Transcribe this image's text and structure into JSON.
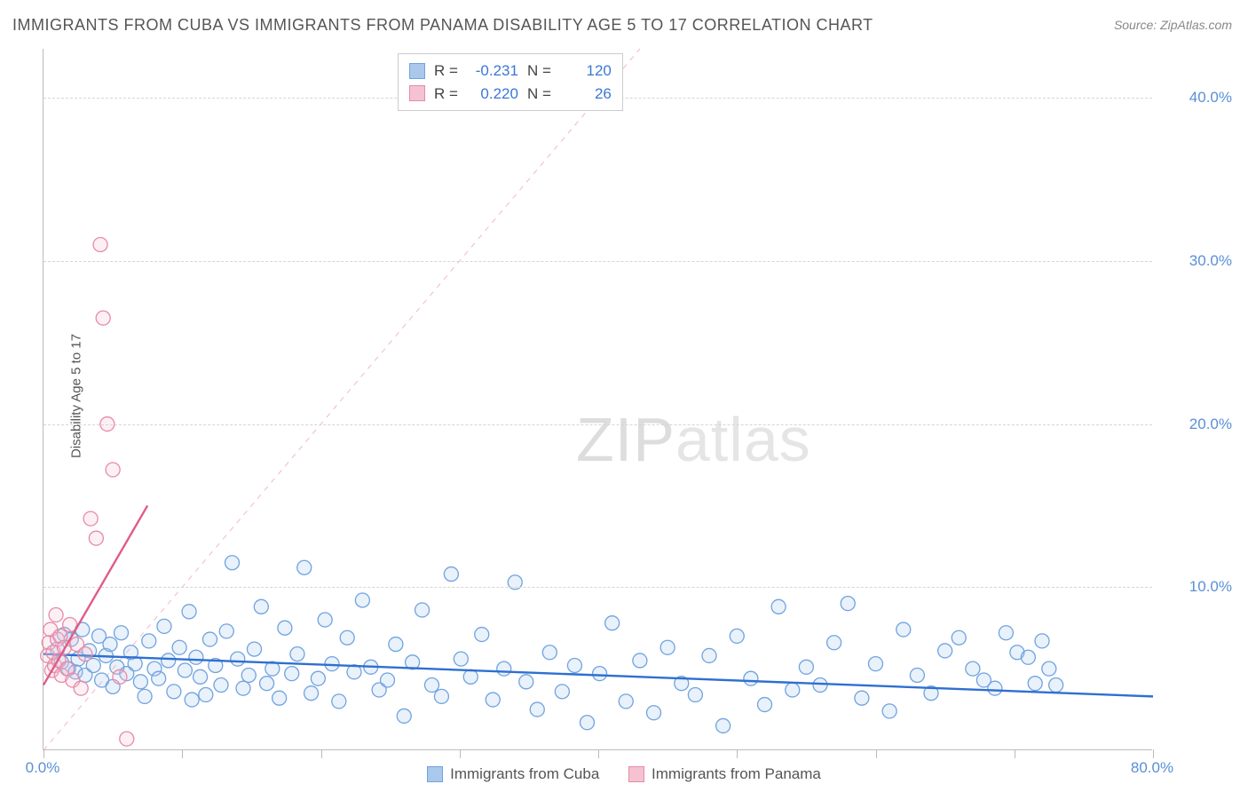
{
  "title": "IMMIGRANTS FROM CUBA VS IMMIGRANTS FROM PANAMA DISABILITY AGE 5 TO 17 CORRELATION CHART",
  "source_label": "Source: ZipAtlas.com",
  "watermark": {
    "bold": "ZIP",
    "light": "atlas"
  },
  "y_axis_label": "Disability Age 5 to 17",
  "chart": {
    "type": "scatter",
    "background_color": "#ffffff",
    "grid_color": "#d5d5d5",
    "axis_color": "#bbbbbb",
    "xlim": [
      0,
      80
    ],
    "ylim": [
      0,
      43
    ],
    "x_ticks": [
      0,
      10,
      20,
      30,
      40,
      50,
      60,
      70,
      80
    ],
    "x_tick_labels_shown": {
      "0": "0.0%",
      "80": "80.0%"
    },
    "y_ticks": [
      10,
      20,
      30,
      40
    ],
    "y_tick_labels": {
      "10": "10.0%",
      "20": "20.0%",
      "30": "30.0%",
      "40": "40.0%"
    },
    "marker_radius": 8,
    "marker_stroke_width": 1.3,
    "marker_fill_opacity": 0.25,
    "trend_line_width": 2.4,
    "diag_line": {
      "x1": 0,
      "y1": 0,
      "x2": 43,
      "y2": 43,
      "dash": "6,6",
      "color": "#f2b8c6",
      "width": 1
    }
  },
  "series": [
    {
      "name": "Immigrants from Cuba",
      "legend_label": "Immigrants from Cuba",
      "color_stroke": "#6fa3e0",
      "color_fill": "#a9c8ec",
      "trend_color": "#2e6fd1",
      "R": "-0.231",
      "N": "120",
      "trend": {
        "x1": 0,
        "y1": 5.9,
        "x2": 80,
        "y2": 3.3
      },
      "points": [
        [
          1,
          6.2
        ],
        [
          1.3,
          5.4
        ],
        [
          1.5,
          7.1
        ],
        [
          1.8,
          5.0
        ],
        [
          2.0,
          6.8
        ],
        [
          2.3,
          4.8
        ],
        [
          2.5,
          5.6
        ],
        [
          2.8,
          7.4
        ],
        [
          3.0,
          4.6
        ],
        [
          3.3,
          6.1
        ],
        [
          3.6,
          5.2
        ],
        [
          4.0,
          7.0
        ],
        [
          4.2,
          4.3
        ],
        [
          4.5,
          5.8
        ],
        [
          4.8,
          6.5
        ],
        [
          5.0,
          3.9
        ],
        [
          5.3,
          5.1
        ],
        [
          5.6,
          7.2
        ],
        [
          6.0,
          4.7
        ],
        [
          6.3,
          6.0
        ],
        [
          6.6,
          5.3
        ],
        [
          7.0,
          4.2
        ],
        [
          7.3,
          3.3
        ],
        [
          7.6,
          6.7
        ],
        [
          8.0,
          5.0
        ],
        [
          8.3,
          4.4
        ],
        [
          8.7,
          7.6
        ],
        [
          9.0,
          5.5
        ],
        [
          9.4,
          3.6
        ],
        [
          9.8,
          6.3
        ],
        [
          10.2,
          4.9
        ],
        [
          10.5,
          8.5
        ],
        [
          10.7,
          3.1
        ],
        [
          11.0,
          5.7
        ],
        [
          11.3,
          4.5
        ],
        [
          11.7,
          3.4
        ],
        [
          12.0,
          6.8
        ],
        [
          12.4,
          5.2
        ],
        [
          12.8,
          4.0
        ],
        [
          13.2,
          7.3
        ],
        [
          13.6,
          11.5
        ],
        [
          14.0,
          5.6
        ],
        [
          14.4,
          3.8
        ],
        [
          14.8,
          4.6
        ],
        [
          15.2,
          6.2
        ],
        [
          15.7,
          8.8
        ],
        [
          16.1,
          4.1
        ],
        [
          16.5,
          5.0
        ],
        [
          17.0,
          3.2
        ],
        [
          17.4,
          7.5
        ],
        [
          17.9,
          4.7
        ],
        [
          18.3,
          5.9
        ],
        [
          18.8,
          11.2
        ],
        [
          19.3,
          3.5
        ],
        [
          19.8,
          4.4
        ],
        [
          20.3,
          8.0
        ],
        [
          20.8,
          5.3
        ],
        [
          21.3,
          3.0
        ],
        [
          21.9,
          6.9
        ],
        [
          22.4,
          4.8
        ],
        [
          23.0,
          9.2
        ],
        [
          23.6,
          5.1
        ],
        [
          24.2,
          3.7
        ],
        [
          24.8,
          4.3
        ],
        [
          25.4,
          6.5
        ],
        [
          26.0,
          2.1
        ],
        [
          26.6,
          5.4
        ],
        [
          27.3,
          8.6
        ],
        [
          28.0,
          4.0
        ],
        [
          28.7,
          3.3
        ],
        [
          29.4,
          10.8
        ],
        [
          30.1,
          5.6
        ],
        [
          30.8,
          4.5
        ],
        [
          31.6,
          7.1
        ],
        [
          32.4,
          3.1
        ],
        [
          33.2,
          5.0
        ],
        [
          34.0,
          10.3
        ],
        [
          34.8,
          4.2
        ],
        [
          35.6,
          2.5
        ],
        [
          36.5,
          6.0
        ],
        [
          37.4,
          3.6
        ],
        [
          38.3,
          5.2
        ],
        [
          39.2,
          1.7
        ],
        [
          40.1,
          4.7
        ],
        [
          41.0,
          7.8
        ],
        [
          42.0,
          3.0
        ],
        [
          43.0,
          5.5
        ],
        [
          44.0,
          2.3
        ],
        [
          45.0,
          6.3
        ],
        [
          46.0,
          4.1
        ],
        [
          47.0,
          3.4
        ],
        [
          48.0,
          5.8
        ],
        [
          49.0,
          1.5
        ],
        [
          50.0,
          7.0
        ],
        [
          51.0,
          4.4
        ],
        [
          52.0,
          2.8
        ],
        [
          53.0,
          8.8
        ],
        [
          54.0,
          3.7
        ],
        [
          55.0,
          5.1
        ],
        [
          56.0,
          4.0
        ],
        [
          57.0,
          6.6
        ],
        [
          58.0,
          9.0
        ],
        [
          59.0,
          3.2
        ],
        [
          60.0,
          5.3
        ],
        [
          61.0,
          2.4
        ],
        [
          62.0,
          7.4
        ],
        [
          63.0,
          4.6
        ],
        [
          64.0,
          3.5
        ],
        [
          65.0,
          6.1
        ],
        [
          66.0,
          6.9
        ],
        [
          67.0,
          5.0
        ],
        [
          67.8,
          4.3
        ],
        [
          68.6,
          3.8
        ],
        [
          69.4,
          7.2
        ],
        [
          70.2,
          6.0
        ],
        [
          71.0,
          5.7
        ],
        [
          71.5,
          4.1
        ],
        [
          72.0,
          6.7
        ],
        [
          72.5,
          5.0
        ],
        [
          73.0,
          4.0
        ]
      ]
    },
    {
      "name": "Immigrants from Panama",
      "legend_label": "Immigrants from Panama",
      "color_stroke": "#e88aa8",
      "color_fill": "#f5c2d2",
      "trend_color": "#e15b86",
      "R": "0.220",
      "N": "26",
      "trend": {
        "x1": 0,
        "y1": 4.0,
        "x2": 7.5,
        "y2": 15.0
      },
      "points": [
        [
          0.3,
          5.8
        ],
        [
          0.4,
          6.6
        ],
        [
          0.5,
          7.4
        ],
        [
          0.6,
          4.9
        ],
        [
          0.7,
          6.0
        ],
        [
          0.8,
          5.2
        ],
        [
          0.9,
          8.3
        ],
        [
          1.0,
          6.8
        ],
        [
          1.1,
          5.5
        ],
        [
          1.2,
          7.0
        ],
        [
          1.3,
          4.6
        ],
        [
          1.5,
          6.3
        ],
        [
          1.7,
          5.0
        ],
        [
          1.9,
          7.7
        ],
        [
          2.1,
          4.3
        ],
        [
          2.4,
          6.5
        ],
        [
          2.7,
          3.8
        ],
        [
          3.0,
          5.9
        ],
        [
          3.4,
          14.2
        ],
        [
          3.8,
          13.0
        ],
        [
          4.1,
          31.0
        ],
        [
          4.3,
          26.5
        ],
        [
          4.6,
          20.0
        ],
        [
          5.0,
          17.2
        ],
        [
          5.5,
          4.5
        ],
        [
          6.0,
          0.7
        ]
      ]
    }
  ],
  "legend_top_labels": {
    "R": "R =",
    "N": "N ="
  }
}
